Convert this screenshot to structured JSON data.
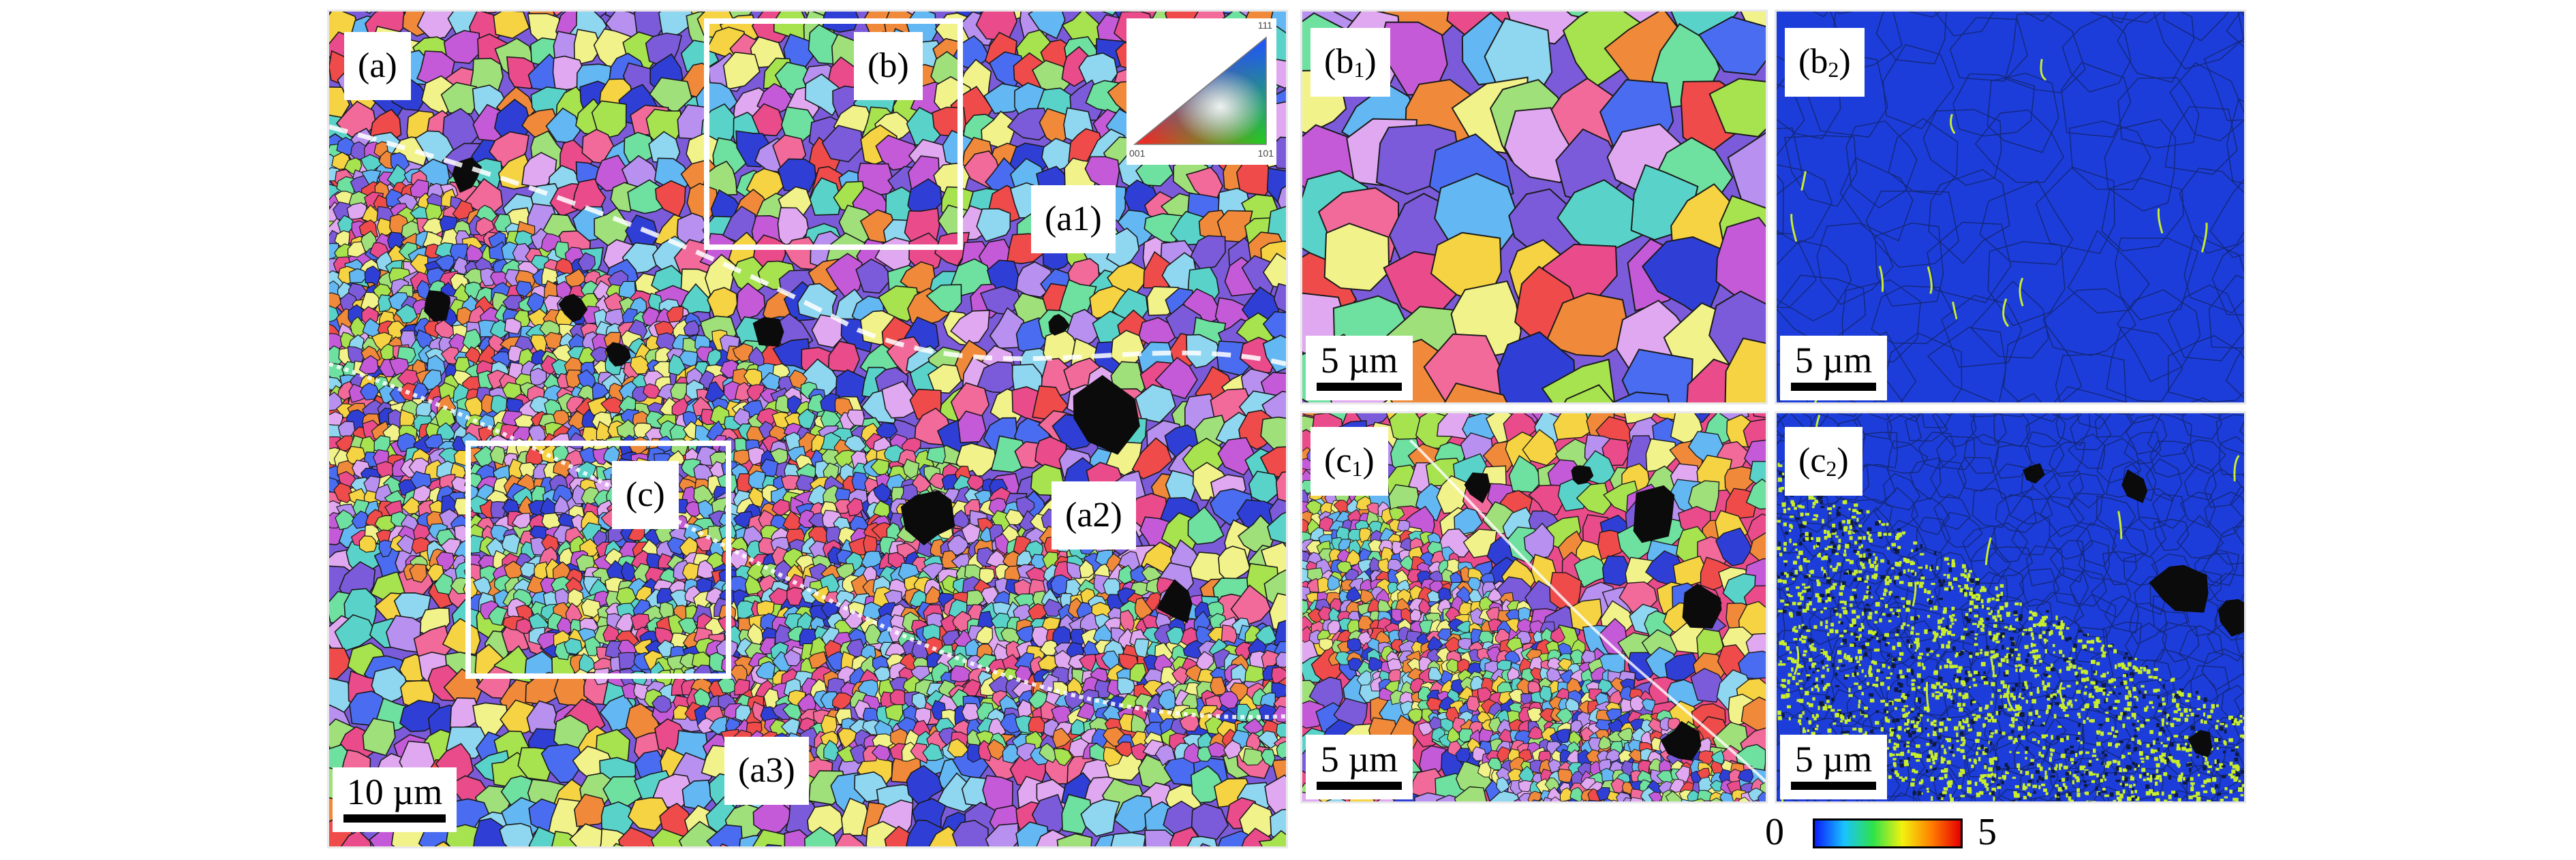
{
  "panels": {
    "a": {
      "label": "(a)",
      "regions": {
        "a1": "(a1)",
        "a2": "(a2)",
        "a3": "(a3)"
      },
      "insets": {
        "b": "(b)",
        "c": "(c)"
      },
      "scale_bar": "10 µm",
      "ipf_legend": {
        "top": "111",
        "left": "001",
        "right": "101"
      }
    },
    "b1": {
      "label_main": "(b",
      "label_sub": "1",
      "label_end": ")",
      "scale_bar": "5 µm"
    },
    "b2": {
      "label_main": "(b",
      "label_sub": "2",
      "label_end": ")",
      "scale_bar": "5 µm"
    },
    "c1": {
      "label_main": "(c",
      "label_sub": "1",
      "label_end": ")",
      "scale_bar": "5 µm"
    },
    "c2": {
      "label_main": "(c",
      "label_sub": "2",
      "label_end": ")",
      "scale_bar": "5 µm"
    }
  },
  "colorbar": {
    "min_label": "0",
    "max_label": "5",
    "colors": [
      "#0a1cff",
      "#19c3ff",
      "#2fe24a",
      "#f2f20f",
      "#ff7f00",
      "#e60000"
    ]
  },
  "palette": {
    "ipf": [
      "#e94b8b",
      "#7b5bd9",
      "#59d3c9",
      "#a7e24f",
      "#f5d342",
      "#f08a3a",
      "#4a6cf0",
      "#c55ad9",
      "#8fd6f0",
      "#f26a9a",
      "#9fe07a",
      "#ef4b4b",
      "#b790f0",
      "#f2f28a",
      "#63b7f2",
      "#6ee0a0",
      "#2f3fd6",
      "#e0a8f0"
    ],
    "kam_background": "#1c3dd9",
    "kam_highlight": "#c8ee2c",
    "pore": "#0b0b0b"
  }
}
